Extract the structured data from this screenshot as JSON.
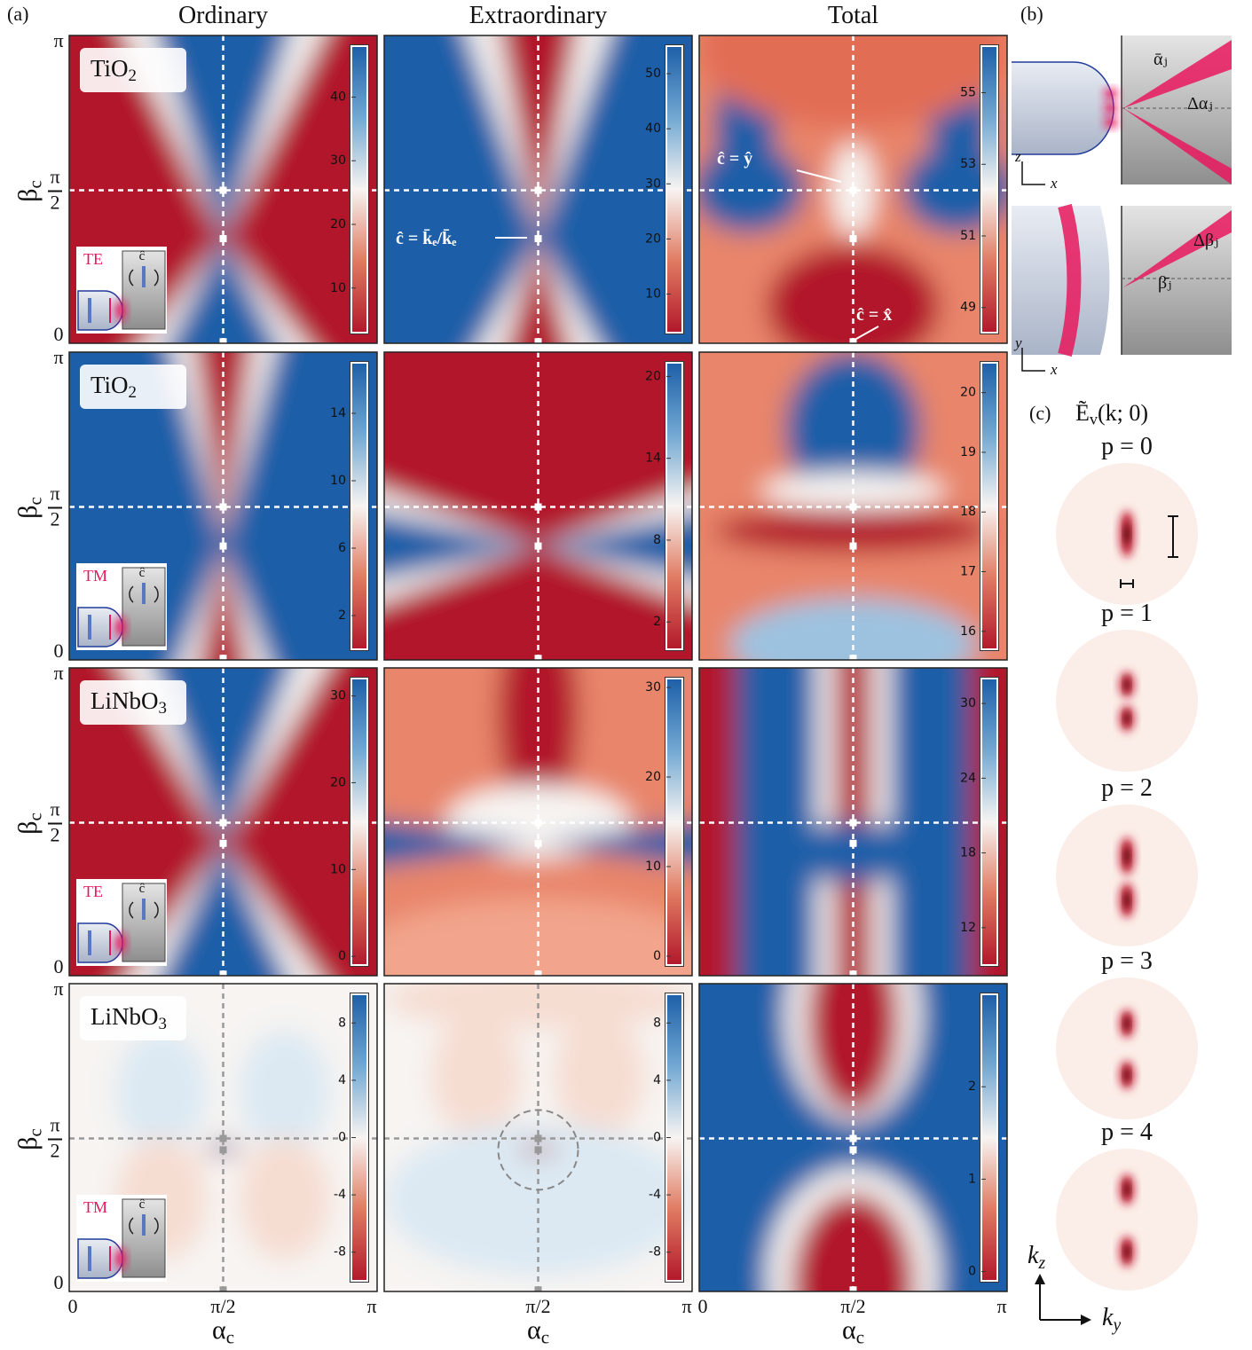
{
  "panel_labels": {
    "a": "(a)",
    "b": "(b)",
    "c": "(c)"
  },
  "columns": [
    "Ordinary",
    "Extraordinary",
    "Total"
  ],
  "axes": {
    "x_label": "α",
    "x_label_sub": "c",
    "x_ticks": [
      "0",
      "π/2",
      "π"
    ],
    "y_label": "β",
    "y_label_sub": "c",
    "y_tick_bottom": "0",
    "y_tick_top": "π",
    "y_tick_mid_num": "π",
    "y_tick_mid_den": "2"
  },
  "rows": [
    {
      "material": "TiO",
      "material_sub": "2",
      "mode": "TE",
      "panels": [
        {
          "clim": [
            3,
            48
          ],
          "ticks": [
            10,
            20,
            30,
            40
          ]
        },
        {
          "clim": [
            3,
            55
          ],
          "ticks": [
            10,
            20,
            30,
            40,
            50
          ]
        },
        {
          "clim": [
            48.3,
            56.3
          ],
          "ticks": [
            49,
            51,
            53,
            55
          ]
        }
      ]
    },
    {
      "material": "TiO",
      "material_sub": "2",
      "mode": "TM",
      "panels": [
        {
          "clim": [
            0,
            17
          ],
          "ticks": [
            2,
            6,
            10,
            14
          ]
        },
        {
          "clim": [
            0,
            21
          ],
          "ticks": [
            2,
            8,
            14,
            20
          ]
        },
        {
          "clim": [
            15.7,
            20.5
          ],
          "ticks": [
            16,
            17,
            18,
            19,
            20
          ]
        }
      ]
    },
    {
      "material": "LiNbO",
      "material_sub": "3",
      "mode": "TE",
      "panels": [
        {
          "clim": [
            -1,
            32
          ],
          "ticks": [
            0,
            10,
            20,
            30
          ]
        },
        {
          "clim": [
            -1,
            31
          ],
          "ticks": [
            0,
            10,
            20,
            30
          ]
        },
        {
          "clim": [
            9,
            32
          ],
          "ticks": [
            12,
            18,
            24,
            30
          ]
        }
      ]
    },
    {
      "material": "LiNbO",
      "material_sub": "3",
      "mode": "TM",
      "panels": [
        {
          "clim": [
            -10,
            10
          ],
          "ticks": [
            -8,
            -4,
            0,
            4,
            8
          ]
        },
        {
          "clim": [
            -10,
            10
          ],
          "ticks": [
            -8,
            -4,
            0,
            4,
            8
          ]
        },
        {
          "clim": [
            -0.1,
            3
          ],
          "ticks": [
            0,
            1,
            2
          ]
        }
      ]
    }
  ],
  "inset_axis": "ĉ",
  "annotations": {
    "ke": "ĉ = k̄ₑ/k̄ₑ",
    "y": "ĉ = ŷ",
    "x": "ĉ = x̂"
  },
  "part_b": {
    "alpha": "ᾱⱼ",
    "dalpha": "Δαⱼ",
    "beta": "β̄ⱼ",
    "dbeta": "Δβⱼ",
    "top_v": "z",
    "top_h": "x",
    "bottom_v": "y",
    "bottom_h": "x"
  },
  "part_c": {
    "title_main": "Ẽ",
    "title_sub": "v",
    "title_rest": "(k; 0)",
    "modes": [
      "p = 0",
      "p = 1",
      "p = 2",
      "p = 3",
      "p = 4"
    ],
    "axis_v": "k",
    "axis_v_sub": "z",
    "axis_h": "k",
    "axis_h_sub": "y"
  }
}
